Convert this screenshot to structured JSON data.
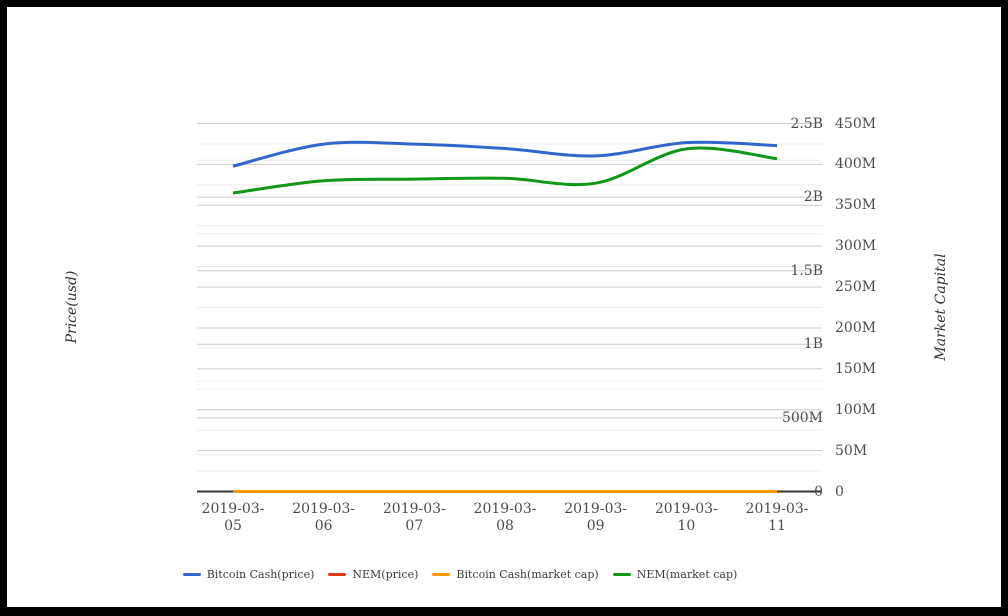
{
  "page": {
    "background_color": "#ffffff",
    "frame_color": "#000000"
  },
  "chart_data": {
    "type": "line",
    "curve": "smooth",
    "grid": "on",
    "x_categories": [
      "2019-03-05",
      "2019-03-06",
      "2019-03-07",
      "2019-03-08",
      "2019-03-09",
      "2019-03-10",
      "2019-03-11"
    ],
    "left_axis": {
      "title": "Price(usd)",
      "max": 2500000000,
      "min": 0,
      "ticks_top_to_bottom": [
        "2.5B",
        "2B",
        "1.5B",
        "1B",
        "500M",
        "0"
      ]
    },
    "right_axis": {
      "title": "Market Capital",
      "max": 450000000,
      "min": 0,
      "ticks_top_to_bottom": [
        "450M",
        "400M",
        "350M",
        "300M",
        "250M",
        "200M",
        "150M",
        "100M",
        "50M",
        "0"
      ]
    },
    "series": [
      {
        "name": "Bitcoin Cash(price)",
        "color": "#3366cc",
        "axis": "left",
        "values": [
          2210000000,
          2360000000,
          2360000000,
          2330000000,
          2280000000,
          2370000000,
          2350000000
        ]
      },
      {
        "name": "NEM(price)",
        "color": "#dc3912",
        "axis": "left",
        "values": [
          0,
          0,
          0,
          0,
          0,
          0,
          0
        ]
      },
      {
        "name": "Bitcoin Cash(market cap)",
        "color": "#ff9900",
        "axis": "right",
        "values": [
          0,
          0,
          0,
          0,
          0,
          0,
          0
        ]
      },
      {
        "name": "NEM(market cap)",
        "color": "#109618",
        "axis": "right",
        "values": [
          365000000,
          380000000,
          382000000,
          383000000,
          377000000,
          419000000,
          407000000
        ]
      }
    ],
    "legend_position": "bottom",
    "colors": {
      "gridline_major": "#cccccc",
      "gridline_minor": "#eeeeee",
      "baseline": "#333333",
      "tick_text": "#4d4d4d"
    }
  }
}
